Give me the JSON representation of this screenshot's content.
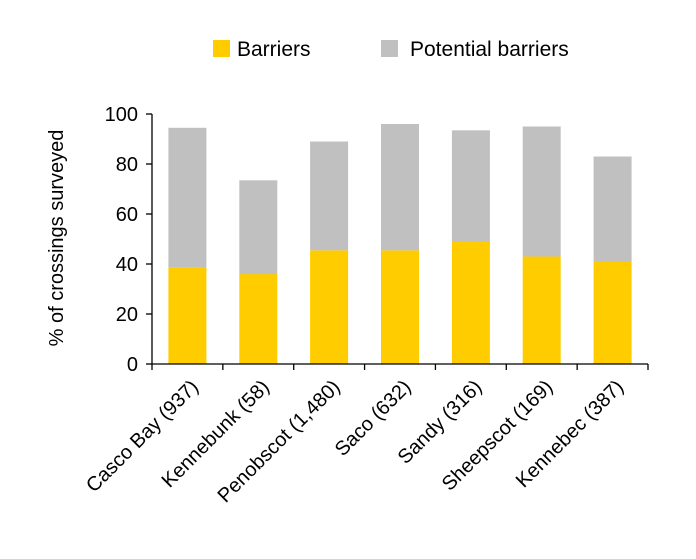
{
  "chart_data": {
    "type": "bar",
    "stacked": true,
    "categories": [
      "Casco Bay (937)",
      "Kennebunk (58)",
      "Penobscot (1,480)",
      "Saco (632)",
      "Sandy (316)",
      "Sheepscot (169)",
      "Kennebec (387)"
    ],
    "series": [
      {
        "name": "Barriers",
        "color": "#FFCC00",
        "values": [
          38.5,
          36,
          45.5,
          45.5,
          49,
          43,
          41
        ]
      },
      {
        "name": "Potential barriers",
        "color": "#C0C0C0",
        "values": [
          56,
          37.5,
          43.5,
          50.5,
          44.5,
          52,
          42
        ]
      }
    ],
    "ylabel": "% of crossings surveyed",
    "xlabel": "",
    "ylim": [
      0,
      100
    ],
    "yticks": [
      0,
      20,
      40,
      60,
      80,
      100
    ],
    "grid": false,
    "legend_position": "top"
  }
}
